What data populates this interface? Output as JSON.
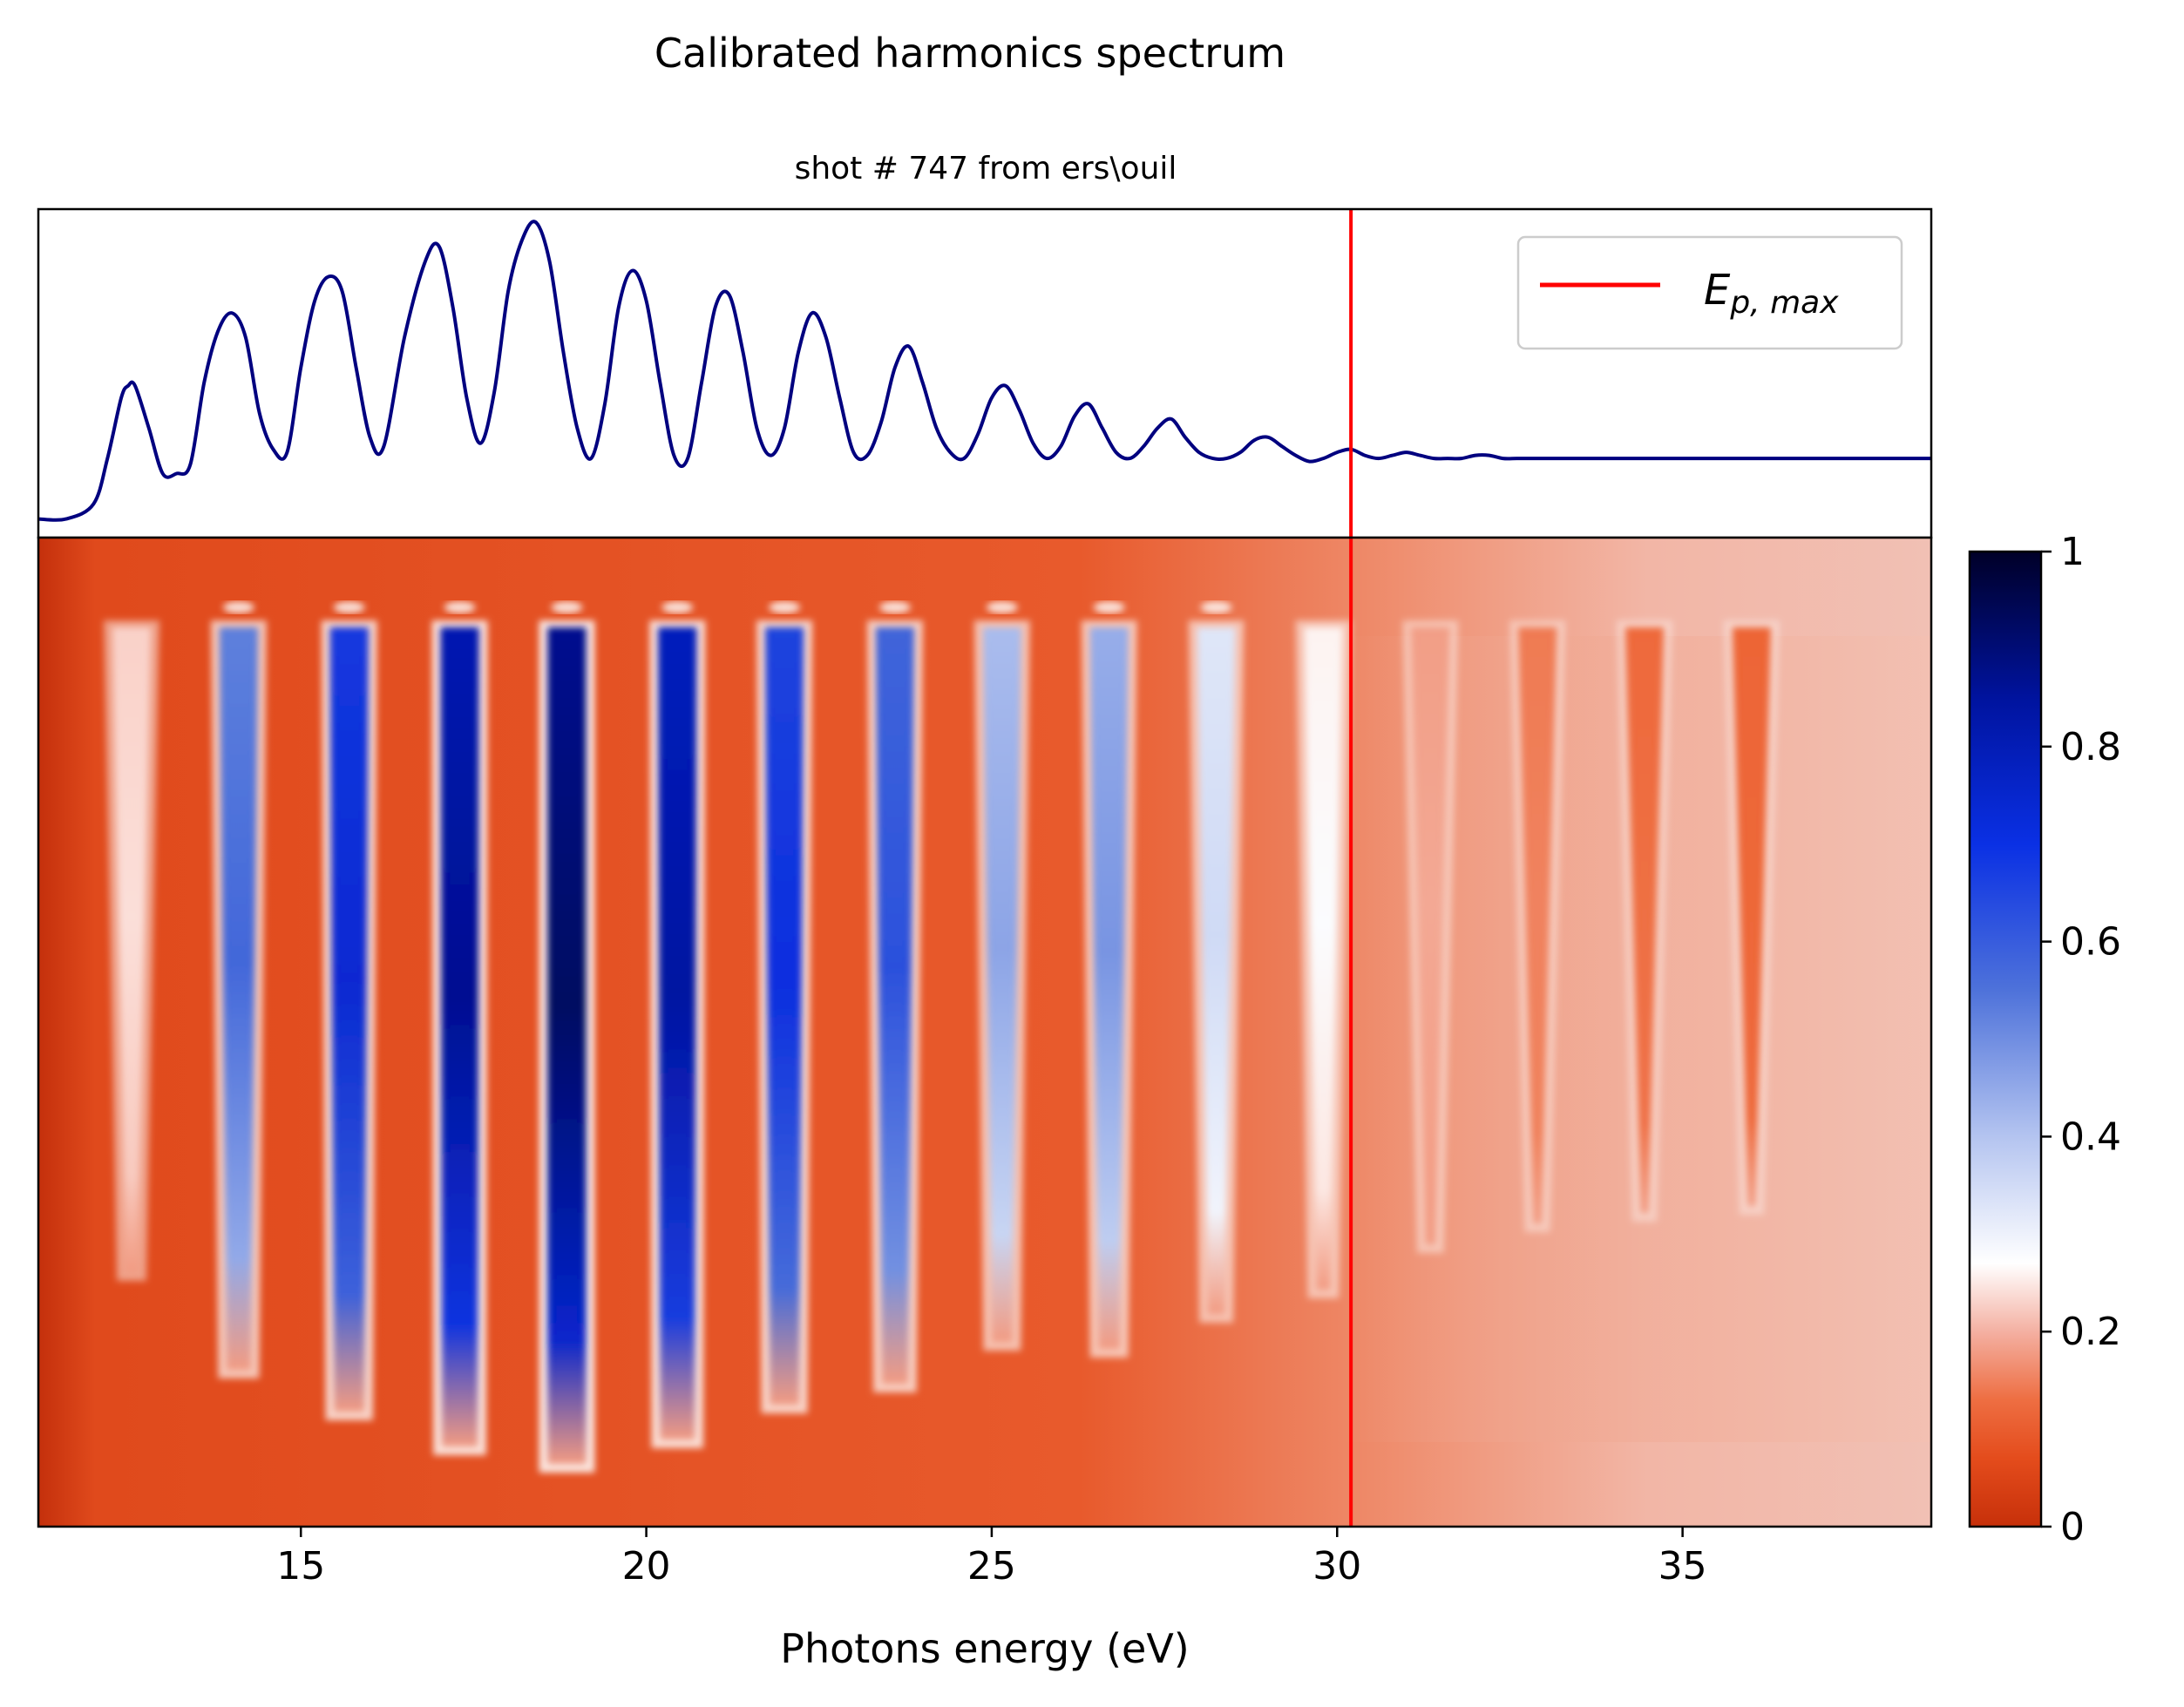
{
  "figure": {
    "suptitle": "Calibrated harmonics spectrum",
    "subtitle": "shot # 747 from ers\\ouil"
  },
  "colors": {
    "spectrum_line": "#00007f",
    "marker_line": "#ff0000",
    "cmap_stops": [
      "#c7300a",
      "#e85020",
      "#ee6a3c",
      "#f4b0a0",
      "#ffffff",
      "#b8c8f0",
      "#4a6fd8",
      "#0a2ee0",
      "#00109c",
      "#000030"
    ]
  },
  "chart_data": [
    {
      "type": "line",
      "panel": "top",
      "series": [
        {
          "x": [
            11.2,
            11.6,
            12.0,
            12.2,
            12.4,
            12.5,
            12.6,
            12.8,
            13.0,
            13.2,
            13.4,
            13.6,
            13.8,
            14.0,
            14.2,
            14.4,
            14.6,
            14.8,
            15.0,
            15.2,
            15.4,
            15.6,
            15.8,
            16.0,
            16.2,
            16.5,
            16.8,
            17.0,
            17.2,
            17.4,
            17.6,
            17.8,
            18.0,
            18.2,
            18.4,
            18.6,
            18.8,
            19.0,
            19.2,
            19.4,
            19.6,
            19.8,
            20.0,
            20.2,
            20.4,
            20.6,
            20.8,
            21.0,
            21.2,
            21.4,
            21.6,
            21.8,
            22.0,
            22.2,
            22.4,
            22.6,
            22.8,
            23.0,
            23.2,
            23.4,
            23.6,
            23.8,
            24.0,
            24.2,
            24.4,
            24.6,
            24.8,
            25.0,
            25.2,
            25.4,
            25.6,
            25.8,
            26.0,
            26.2,
            26.4,
            26.6,
            26.8,
            27.0,
            27.2,
            27.4,
            27.6,
            27.8,
            28.0,
            28.2,
            28.4,
            28.6,
            28.8,
            29.0,
            29.2,
            29.4,
            29.6,
            29.8,
            30.0,
            30.2,
            30.4,
            30.6,
            30.8,
            31.0,
            31.2,
            31.4,
            31.6,
            31.8,
            32.0,
            32.2,
            32.4,
            32.6,
            32.8,
            33.0,
            33.5,
            34.0,
            34.5,
            35.0,
            35.5,
            36.0,
            37.0,
            38.0,
            38.6
          ],
          "y": [
            0.0,
            0.0,
            0.05,
            0.2,
            0.4,
            0.44,
            0.44,
            0.3,
            0.15,
            0.15,
            0.18,
            0.45,
            0.62,
            0.68,
            0.6,
            0.35,
            0.23,
            0.22,
            0.5,
            0.72,
            0.8,
            0.75,
            0.5,
            0.27,
            0.24,
            0.6,
            0.85,
            0.9,
            0.7,
            0.4,
            0.25,
            0.42,
            0.75,
            0.92,
            0.98,
            0.85,
            0.55,
            0.3,
            0.2,
            0.38,
            0.7,
            0.82,
            0.72,
            0.45,
            0.21,
            0.2,
            0.45,
            0.7,
            0.74,
            0.55,
            0.3,
            0.21,
            0.3,
            0.55,
            0.68,
            0.6,
            0.4,
            0.22,
            0.21,
            0.32,
            0.5,
            0.57,
            0.45,
            0.3,
            0.22,
            0.2,
            0.28,
            0.4,
            0.44,
            0.36,
            0.25,
            0.2,
            0.24,
            0.34,
            0.38,
            0.3,
            0.22,
            0.2,
            0.24,
            0.3,
            0.33,
            0.27,
            0.22,
            0.2,
            0.2,
            0.22,
            0.26,
            0.27,
            0.24,
            0.21,
            0.19,
            0.2,
            0.22,
            0.23,
            0.21,
            0.2,
            0.21,
            0.22,
            0.21,
            0.2,
            0.2,
            0.2,
            0.21,
            0.21,
            0.2,
            0.2,
            0.2,
            0.2,
            0.2,
            0.2,
            0.2,
            0.2,
            0.2,
            0.2,
            0.2,
            0.2,
            0.2
          ]
        },
        {
          "name": "E_{p, max}",
          "x": [
            30.2,
            30.2
          ],
          "y": [
            -0.2,
            1.1
          ]
        }
      ],
      "xlim": [
        11.2,
        38.6
      ],
      "ylim": [
        -0.05,
        1.0
      ],
      "legend": "upper-right",
      "legend_main": "E",
      "legend_sub": "p, max"
    },
    {
      "type": "heatmap",
      "panel": "bottom",
      "xlabel": "Photons energy (eV)",
      "xlim": [
        11.2,
        38.6
      ],
      "xticks": [
        15,
        20,
        25,
        30,
        35
      ],
      "xtick_labels": [
        "15",
        "20",
        "25",
        "30",
        "35"
      ],
      "colorbar_ticks": [
        0,
        0.2,
        0.4,
        0.6,
        0.8,
        1
      ],
      "colorbar_tick_labels": [
        "0",
        "0.2",
        "0.4",
        "0.6",
        "0.8",
        "1"
      ],
      "marker_x": 30.2,
      "harmonics": [
        {
          "x": 12.55,
          "peak": 0.4
        },
        {
          "x": 14.1,
          "peak": 0.68
        },
        {
          "x": 15.7,
          "peak": 0.8
        },
        {
          "x": 17.3,
          "peak": 0.9
        },
        {
          "x": 18.85,
          "peak": 0.95
        },
        {
          "x": 20.45,
          "peak": 0.88
        },
        {
          "x": 22.0,
          "peak": 0.78
        },
        {
          "x": 23.6,
          "peak": 0.72
        },
        {
          "x": 25.15,
          "peak": 0.6
        },
        {
          "x": 26.7,
          "peak": 0.62
        },
        {
          "x": 28.25,
          "peak": 0.52
        },
        {
          "x": 29.8,
          "peak": 0.45
        },
        {
          "x": 31.35,
          "peak": 0.32
        },
        {
          "x": 32.9,
          "peak": 0.26
        },
        {
          "x": 34.45,
          "peak": 0.23
        },
        {
          "x": 36.0,
          "peak": 0.21
        }
      ]
    }
  ]
}
